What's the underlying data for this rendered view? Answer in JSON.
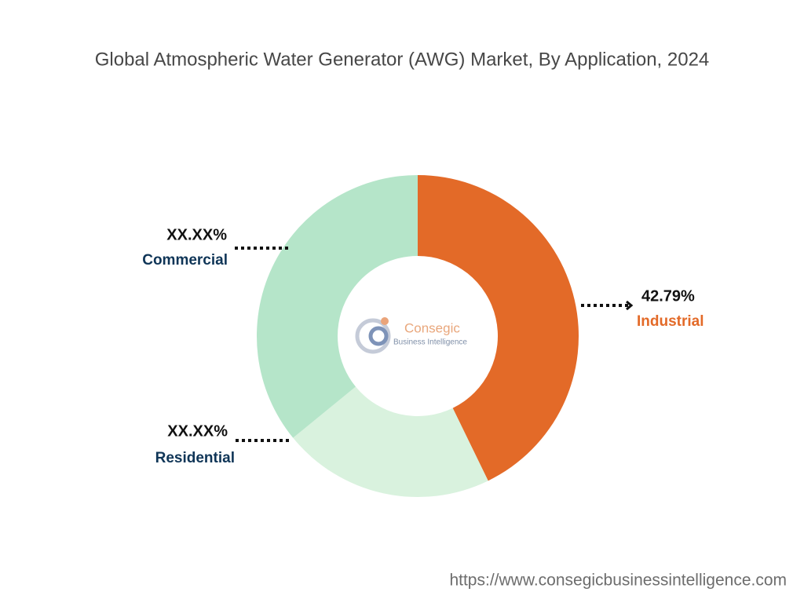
{
  "chart_data": {
    "type": "donut",
    "title": "Global Atmospheric Water Generator (AWG) Market, By Application, 2024",
    "categories": [
      "Industrial",
      "Residential",
      "Commercial"
    ],
    "values": [
      42.79,
      21.31,
      35.9
    ],
    "value_labels": [
      "42.79%",
      "XX.XX%",
      "XX.XX%"
    ],
    "colors": [
      "#e36a28",
      "#d9f2de",
      "#b5e5c9"
    ],
    "logo": {
      "name": "Consegic",
      "tagline": "Business Intelligence"
    },
    "source": "https://www.consegicbusinessintelligence.com"
  }
}
